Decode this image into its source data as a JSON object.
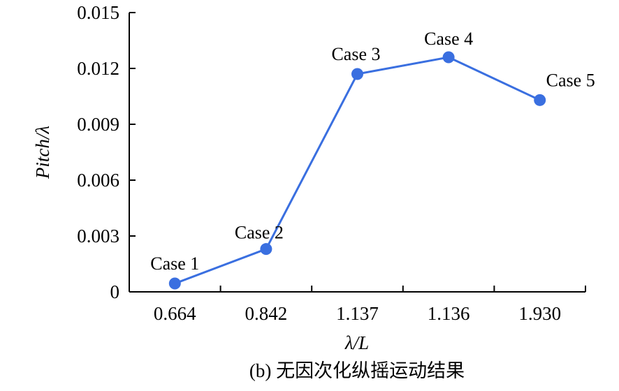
{
  "chart_data": {
    "type": "line",
    "categories": [
      "0.664",
      "0.842",
      "1.137",
      "1.136",
      "1.930"
    ],
    "values": [
      0.00045,
      0.0023,
      0.0117,
      0.0126,
      0.0103
    ],
    "point_labels": [
      "Case 1",
      "Case 2",
      "Case 3",
      "Case 4",
      "Case 5"
    ],
    "ylabel": "Pitch/λ",
    "xlabel": "λ/L",
    "caption": "(b) 无因次化纵摇运动结果",
    "ylim": [
      0,
      0.015
    ],
    "yticks": [
      "0",
      "0.003",
      "0.006",
      "0.009",
      "0.012",
      "0.015"
    ],
    "grid": false,
    "legend": "none",
    "series_color": "#3a6fe0"
  }
}
